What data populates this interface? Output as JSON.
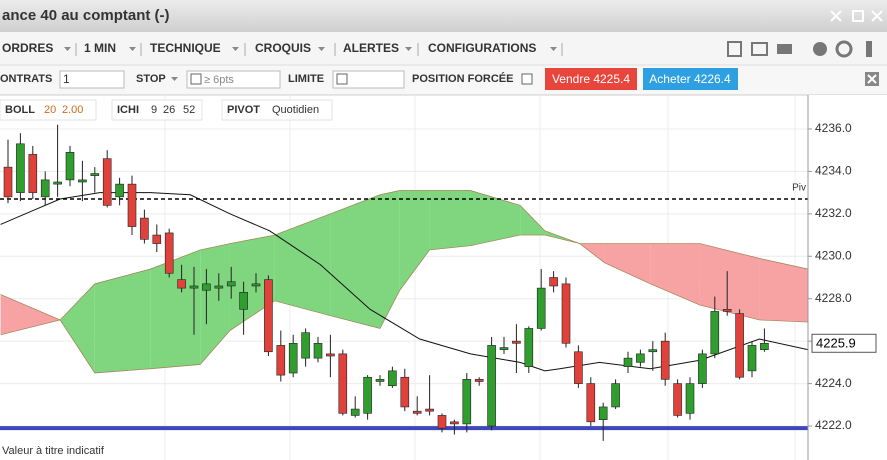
{
  "window": {
    "title": "ance 40 au comptant (-)"
  },
  "menu": [
    "ORDRES",
    "1 MIN",
    "TECHNIQUE",
    "CROQUIS",
    "ALERTES",
    "CONFIGURATIONS"
  ],
  "order_bar": {
    "contracts_label": "ONTRATS",
    "contracts_value": "1",
    "stop_label": "STOP",
    "stop_placeholder": "≥ 6pts",
    "limit_label": "LIMITE",
    "forced_label": "POSITION FORCÉE",
    "sell": "Vendre 4225.4",
    "buy": "Acheter 4226.4"
  },
  "indicators": [
    {
      "name": "BOLL",
      "params": [
        "20",
        "2.00"
      ]
    },
    {
      "name": "ICHI",
      "params": [
        "9",
        "26",
        "52"
      ]
    },
    {
      "name": "PIVOT",
      "params": [
        "Quotidien"
      ]
    }
  ],
  "chart_data": {
    "type": "candlestick",
    "open": [
      4234.2,
      4233.0,
      4234.8,
      4232.8,
      4233.4,
      4233.6,
      4233.5,
      4233.8,
      4234.6,
      4232.8,
      4233.4,
      4231.8,
      4231.0,
      4231.1,
      4228.9,
      4228.5,
      4228.4,
      4228.5,
      4228.6,
      4227.5,
      4228.6,
      4228.9,
      4225.8,
      4224.5,
      4225.2,
      4225.2,
      4225.4,
      4225.4,
      4222.5,
      4222.6,
      4224.1,
      4223.9,
      4224.3,
      4222.7,
      4222.8,
      4222.5,
      4222.2,
      4222.1,
      4224.2,
      4222.0,
      4225.6,
      4226.0,
      4224.8,
      4226.6,
      4229.0,
      4228.7,
      4225.5,
      4224.0,
      4222.3,
      4222.9,
      4224.8,
      4225.0,
      4225.5,
      4226.0,
      4224.0,
      4222.6,
      4224.0,
      4225.4,
      4227.5,
      4227.3,
      4224.6,
      4225.6
    ],
    "high": [
      4235.5,
      4235.8,
      4235.2,
      4234.0,
      4236.2,
      4235.2,
      4234.5,
      4234.2,
      4235.0,
      4233.7,
      4233.8,
      4232.2,
      4231.5,
      4231.3,
      4229.6,
      4229.5,
      4229.4,
      4229.2,
      4229.5,
      4228.8,
      4229.2,
      4229.1,
      4226.5,
      4226.3,
      4226.6,
      4226.2,
      4226.3,
      4225.6,
      4223.4,
      4224.4,
      4224.4,
      4224.8,
      4224.7,
      4223.4,
      4224.4,
      4222.6,
      4222.3,
      4224.5,
      4224.3,
      4226.2,
      4226.2,
      4226.8,
      4226.7,
      4229.4,
      4229.3,
      4229.0,
      4225.8,
      4224.3,
      4223.1,
      4224.2,
      4225.5,
      4225.6,
      4226.0,
      4226.4,
      4224.2,
      4224.3,
      4225.6,
      4228.1,
      4229.3,
      4227.5,
      4226.0,
      4226.6
    ],
    "low": [
      4232.5,
      4232.6,
      4232.7,
      4232.4,
      4232.8,
      4233.3,
      4232.6,
      4233.0,
      4232.3,
      4232.4,
      4231.0,
      4230.6,
      4230.2,
      4229.0,
      4228.3,
      4226.3,
      4226.8,
      4227.9,
      4228.0,
      4226.3,
      4228.3,
      4225.3,
      4224.1,
      4224.3,
      4224.8,
      4225.0,
      4224.3,
      4222.5,
      4222.4,
      4222.3,
      4223.9,
      4223.8,
      4222.7,
      4222.5,
      4222.5,
      4221.7,
      4221.6,
      4221.7,
      4223.9,
      4221.8,
      4225.4,
      4224.5,
      4224.5,
      4226.5,
      4228.3,
      4225.7,
      4223.8,
      4222.0,
      4221.3,
      4222.8,
      4224.5,
      4224.8,
      4224.6,
      4223.9,
      4222.4,
      4222.3,
      4223.8,
      4225.2,
      4227.2,
      4224.2,
      4224.3,
      4225.5
    ],
    "close": [
      4232.8,
      4235.3,
      4233.0,
      4233.6,
      4233.5,
      4234.9,
      4233.6,
      4233.9,
      4232.4,
      4233.4,
      4231.4,
      4230.8,
      4230.6,
      4229.2,
      4228.5,
      4228.6,
      4228.7,
      4228.6,
      4228.8,
      4228.3,
      4228.7,
      4225.5,
      4224.4,
      4225.9,
      4226.4,
      4225.9,
      4225.3,
      4222.6,
      4222.8,
      4224.3,
      4224.2,
      4224.6,
      4222.9,
      4222.6,
      4222.7,
      4221.9,
      4222.1,
      4224.2,
      4224.1,
      4225.8,
      4225.7,
      4225.9,
      4226.6,
      4228.5,
      4228.6,
      4225.9,
      4224.0,
      4222.2,
      4222.9,
      4224.0,
      4225.2,
      4225.4,
      4225.6,
      4224.2,
      4222.5,
      4224.0,
      4225.4,
      4227.4,
      4227.4,
      4224.3,
      4225.8,
      4225.9
    ],
    "up_color": "#2f9e2f",
    "down_color": "#e0413a",
    "ylim": [
      4220.4,
      4237.6
    ],
    "yticks": [
      {
        "value": 4222,
        "label": "4222.0"
      },
      {
        "value": 4224,
        "label": "4224.0"
      },
      {
        "value": 4226,
        "label": "4226.0"
      },
      {
        "value": 4228,
        "label": "4228.0"
      },
      {
        "value": 4230,
        "label": "4230.0"
      },
      {
        "value": 4232,
        "label": "4232.0"
      },
      {
        "value": 4234,
        "label": "4234.0"
      },
      {
        "value": 4236,
        "label": "4236.0"
      }
    ],
    "grid": true,
    "pivot": {
      "value": 4232.7,
      "label": "Piv"
    },
    "last_price": 4225.9,
    "support": 4221.9,
    "cloud": {
      "x": [
        -0.6,
        4.2,
        7.0,
        11.5,
        15.5,
        17.9,
        21.5,
        26.0,
        30.0,
        31.6,
        34.0,
        37.3,
        41.3,
        43.3,
        46.1,
        48.1,
        51.8,
        55.8,
        60.6,
        64.5
      ],
      "span_a": [
        4226.3,
        4227.0,
        4228.7,
        4229.4,
        4230.3,
        4230.6,
        4231.0,
        4232.0,
        4232.9,
        4233.1,
        4233.1,
        4233.1,
        4232.4,
        4231.2,
        4230.6,
        4229.7,
        4228.7,
        4227.7,
        4227.0,
        4226.9
      ],
      "span_b": [
        4228.2,
        4227.0,
        4224.5,
        4224.7,
        4224.9,
        4226.5,
        4227.9,
        4227.2,
        4226.6,
        4228.4,
        4230.3,
        4230.5,
        4231.0,
        4231.0,
        4230.6,
        4230.6,
        4230.6,
        4230.6,
        4229.9,
        4229.4
      ],
      "up_color": "#7fd67f",
      "down_color": "#f7a3a3"
    },
    "lines": [
      {
        "color": "#111111",
        "x": [
          -0.6,
          1.8,
          4.2,
          7.4,
          11.5,
          14.7,
          17.9,
          21.1,
          25.2,
          29.2,
          33.2,
          37.3,
          41.3,
          43.3,
          44.5,
          47.7,
          51.8,
          55.8,
          60.6,
          64.5
        ],
        "values": [
          4231.5,
          4232.1,
          4232.7,
          4233.0,
          4233.0,
          4232.9,
          4232.0,
          4231.2,
          4229.6,
          4227.5,
          4226.1,
          4225.4,
          4225.0,
          4224.6,
          4224.7,
          4225.0,
          4224.7,
          4225.1,
          4226.1,
          4225.6
        ]
      }
    ]
  },
  "footer": "Valeur à titre indicatif"
}
